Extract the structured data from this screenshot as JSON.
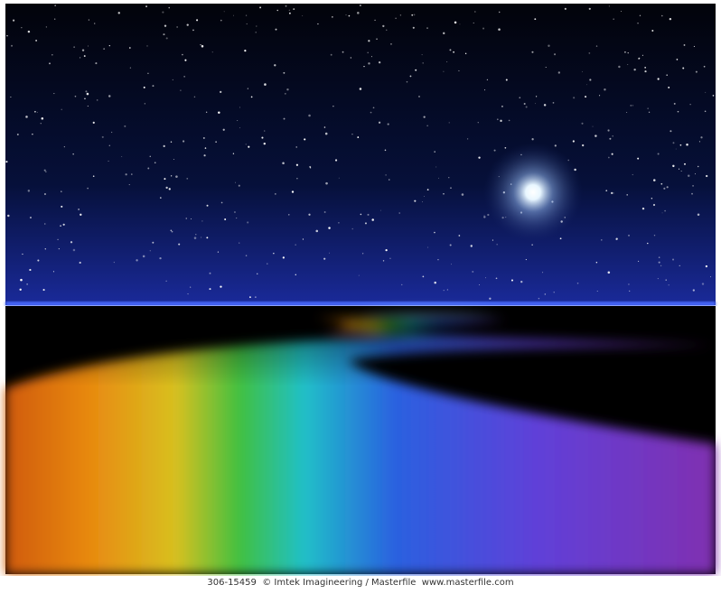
{
  "caption": "306-15459  © Imtek Imagineering / Masterfile  www.masterfile.com"
}
